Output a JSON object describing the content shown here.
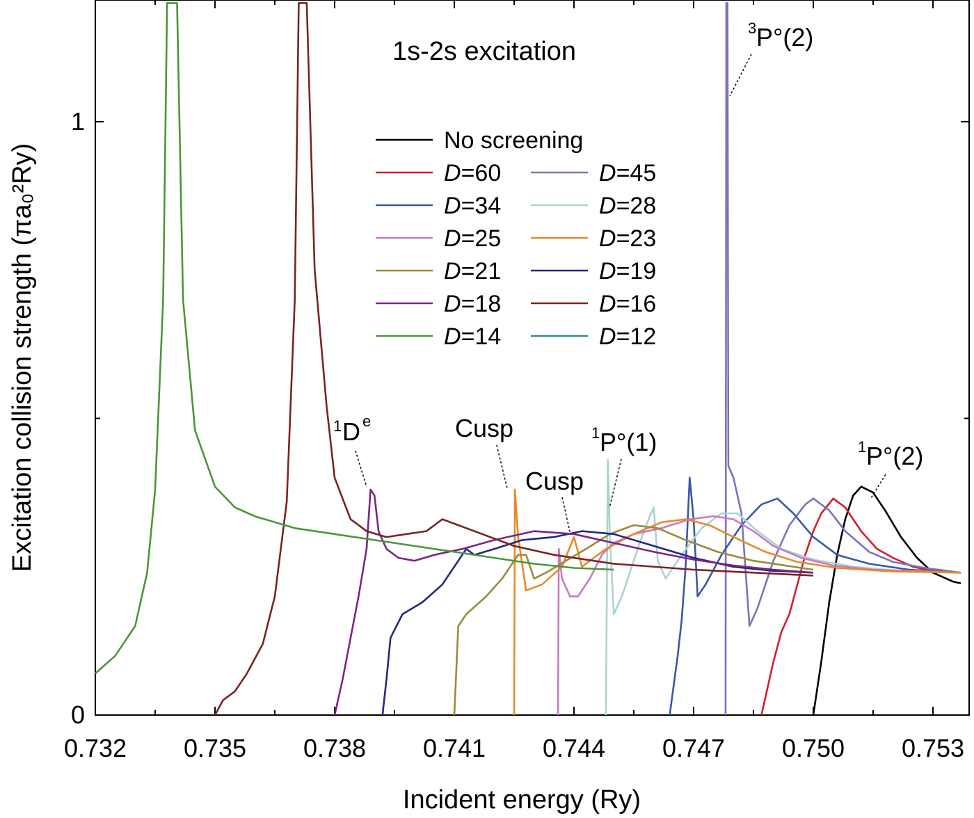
{
  "chart_data": {
    "type": "line",
    "title": "1s-2s excitation",
    "xlabel": "Incident energy (Ry)",
    "ylabel": "Excitation collision strength (πa₀²Ry)",
    "xlim": [
      0.732,
      0.7537
    ],
    "ylim": [
      0,
      1.2
    ],
    "x_ticks": [
      "0.732",
      "0.735",
      "0.738",
      "0.741",
      "0.744",
      "0.747",
      "0.750",
      "0.753"
    ],
    "y_ticks": [
      "0",
      "1"
    ],
    "grid": false,
    "legend_position": "upper-center",
    "series": [
      {
        "name": "No screening",
        "color": "#000000",
        "points": [
          [
            0.75,
            0.0
          ],
          [
            0.7502,
            0.09
          ],
          [
            0.7504,
            0.19
          ],
          [
            0.7506,
            0.27
          ],
          [
            0.7508,
            0.33
          ],
          [
            0.751,
            0.37
          ],
          [
            0.7512,
            0.385
          ],
          [
            0.7515,
            0.375
          ],
          [
            0.7518,
            0.345
          ],
          [
            0.7522,
            0.3
          ],
          [
            0.7526,
            0.265
          ],
          [
            0.753,
            0.24
          ],
          [
            0.7535,
            0.225
          ],
          [
            0.7537,
            0.222
          ]
        ]
      },
      {
        "name": "D=60",
        "color": "#d21f2a",
        "points": [
          [
            0.7487,
            0.0
          ],
          [
            0.749,
            0.09
          ],
          [
            0.7492,
            0.14
          ],
          [
            0.7494,
            0.17
          ],
          [
            0.7496,
            0.22
          ],
          [
            0.7498,
            0.27
          ],
          [
            0.75,
            0.31
          ],
          [
            0.7502,
            0.34
          ],
          [
            0.7505,
            0.365
          ],
          [
            0.7508,
            0.35
          ],
          [
            0.7512,
            0.31
          ],
          [
            0.7516,
            0.28
          ],
          [
            0.752,
            0.265
          ],
          [
            0.7525,
            0.25
          ],
          [
            0.753,
            0.243
          ],
          [
            0.7537,
            0.24
          ]
        ]
      },
      {
        "name": "D=45",
        "color": "#7b73b8",
        "points": [
          [
            0.7478,
            0.0
          ],
          [
            0.74782,
            1.2
          ],
          [
            0.74785,
            1.2
          ],
          [
            0.74787,
            0.42
          ],
          [
            0.748,
            0.4
          ],
          [
            0.7482,
            0.34
          ],
          [
            0.7484,
            0.15
          ],
          [
            0.7486,
            0.18
          ],
          [
            0.749,
            0.26
          ],
          [
            0.7494,
            0.32
          ],
          [
            0.7498,
            0.355
          ],
          [
            0.75,
            0.365
          ],
          [
            0.7504,
            0.345
          ],
          [
            0.7508,
            0.31
          ],
          [
            0.7514,
            0.275
          ],
          [
            0.752,
            0.258
          ],
          [
            0.7528,
            0.248
          ],
          [
            0.7537,
            0.24
          ]
        ]
      },
      {
        "name": "D=34",
        "color": "#3a57a7",
        "points": [
          [
            0.7464,
            0.0
          ],
          [
            0.7466,
            0.1
          ],
          [
            0.7467,
            0.16
          ],
          [
            0.7468,
            0.25
          ],
          [
            0.7469,
            0.4
          ],
          [
            0.747,
            0.33
          ],
          [
            0.7471,
            0.2
          ],
          [
            0.7473,
            0.22
          ],
          [
            0.7477,
            0.27
          ],
          [
            0.7482,
            0.32
          ],
          [
            0.7487,
            0.355
          ],
          [
            0.7491,
            0.365
          ],
          [
            0.7495,
            0.34
          ],
          [
            0.75,
            0.3
          ],
          [
            0.7506,
            0.27
          ],
          [
            0.7514,
            0.255
          ],
          [
            0.7524,
            0.245
          ],
          [
            0.7537,
            0.24
          ]
        ]
      },
      {
        "name": "D=28",
        "color": "#a9d4d3",
        "points": [
          [
            0.7448,
            0.0
          ],
          [
            0.74485,
            0.43
          ],
          [
            0.7449,
            0.3
          ],
          [
            0.745,
            0.17
          ],
          [
            0.7452,
            0.2
          ],
          [
            0.7455,
            0.26
          ],
          [
            0.7457,
            0.3
          ],
          [
            0.7459,
            0.335
          ],
          [
            0.746,
            0.35
          ],
          [
            0.7461,
            0.26
          ],
          [
            0.7463,
            0.23
          ],
          [
            0.7467,
            0.27
          ],
          [
            0.7472,
            0.315
          ],
          [
            0.7477,
            0.34
          ],
          [
            0.7481,
            0.34
          ],
          [
            0.7486,
            0.31
          ],
          [
            0.7492,
            0.28
          ],
          [
            0.75,
            0.262
          ],
          [
            0.751,
            0.25
          ],
          [
            0.752,
            0.244
          ],
          [
            0.7537,
            0.24
          ]
        ]
      },
      {
        "name": "D=25",
        "color": "#c97ac0",
        "points": [
          [
            0.7436,
            0.0
          ],
          [
            0.74362,
            0.28
          ],
          [
            0.7437,
            0.23
          ],
          [
            0.7439,
            0.2
          ],
          [
            0.7441,
            0.2
          ],
          [
            0.7444,
            0.23
          ],
          [
            0.7447,
            0.27
          ],
          [
            0.745,
            0.29
          ],
          [
            0.7455,
            0.305
          ],
          [
            0.7462,
            0.315
          ],
          [
            0.7469,
            0.33
          ],
          [
            0.7475,
            0.335
          ],
          [
            0.748,
            0.33
          ],
          [
            0.7485,
            0.31
          ],
          [
            0.749,
            0.285
          ],
          [
            0.7497,
            0.265
          ],
          [
            0.7505,
            0.252
          ],
          [
            0.7515,
            0.245
          ],
          [
            0.7537,
            0.24
          ]
        ]
      },
      {
        "name": "D=23",
        "color": "#e8892b",
        "points": [
          [
            0.7425,
            0.0
          ],
          [
            0.74252,
            0.38
          ],
          [
            0.7426,
            0.3
          ],
          [
            0.7428,
            0.21
          ],
          [
            0.7432,
            0.22
          ],
          [
            0.7437,
            0.25
          ],
          [
            0.744,
            0.3
          ],
          [
            0.7442,
            0.25
          ],
          [
            0.7444,
            0.26
          ],
          [
            0.7448,
            0.28
          ],
          [
            0.7455,
            0.305
          ],
          [
            0.7462,
            0.325
          ],
          [
            0.7468,
            0.33
          ],
          [
            0.7474,
            0.32
          ],
          [
            0.748,
            0.3
          ],
          [
            0.7488,
            0.275
          ],
          [
            0.7496,
            0.258
          ],
          [
            0.7506,
            0.248
          ],
          [
            0.752,
            0.242
          ],
          [
            0.7537,
            0.24
          ]
        ]
      },
      {
        "name": "D=21",
        "color": "#9c8b36",
        "points": [
          [
            0.741,
            0.0
          ],
          [
            0.7411,
            0.15
          ],
          [
            0.7413,
            0.17
          ],
          [
            0.7418,
            0.2
          ],
          [
            0.7422,
            0.23
          ],
          [
            0.7426,
            0.27
          ],
          [
            0.7428,
            0.27
          ],
          [
            0.743,
            0.23
          ],
          [
            0.7433,
            0.24
          ],
          [
            0.7438,
            0.26
          ],
          [
            0.7443,
            0.28
          ],
          [
            0.7449,
            0.305
          ],
          [
            0.7455,
            0.32
          ],
          [
            0.7461,
            0.315
          ],
          [
            0.7468,
            0.295
          ],
          [
            0.7476,
            0.275
          ],
          [
            0.7485,
            0.26
          ],
          [
            0.75,
            0.245
          ]
        ]
      },
      {
        "name": "D=19",
        "color": "#24287f",
        "points": [
          [
            0.7392,
            0.0
          ],
          [
            0.7393,
            0.06
          ],
          [
            0.7394,
            0.13
          ],
          [
            0.7397,
            0.17
          ],
          [
            0.7402,
            0.19
          ],
          [
            0.7407,
            0.22
          ],
          [
            0.7411,
            0.26
          ],
          [
            0.7413,
            0.28
          ],
          [
            0.7415,
            0.27
          ],
          [
            0.742,
            0.28
          ],
          [
            0.7427,
            0.295
          ],
          [
            0.7435,
            0.3
          ],
          [
            0.7442,
            0.31
          ],
          [
            0.745,
            0.305
          ],
          [
            0.746,
            0.285
          ],
          [
            0.747,
            0.265
          ],
          [
            0.748,
            0.25
          ],
          [
            0.749,
            0.243
          ],
          [
            0.75,
            0.24
          ]
        ]
      },
      {
        "name": "D=18",
        "color": "#7b2585",
        "points": [
          [
            0.738,
            0.0
          ],
          [
            0.7382,
            0.06
          ],
          [
            0.7384,
            0.13
          ],
          [
            0.7386,
            0.2
          ],
          [
            0.7388,
            0.28
          ],
          [
            0.7389,
            0.38
          ],
          [
            0.739,
            0.37
          ],
          [
            0.7391,
            0.31
          ],
          [
            0.7393,
            0.28
          ],
          [
            0.7396,
            0.265
          ],
          [
            0.74,
            0.26
          ],
          [
            0.7405,
            0.27
          ],
          [
            0.7412,
            0.28
          ],
          [
            0.742,
            0.295
          ],
          [
            0.743,
            0.31
          ],
          [
            0.744,
            0.305
          ],
          [
            0.745,
            0.29
          ],
          [
            0.746,
            0.275
          ],
          [
            0.747,
            0.262
          ],
          [
            0.748,
            0.252
          ],
          [
            0.749,
            0.245
          ],
          [
            0.75,
            0.24
          ]
        ]
      },
      {
        "name": "D=16",
        "color": "#7a2323",
        "points": [
          [
            0.735,
            0.0
          ],
          [
            0.7352,
            0.025
          ],
          [
            0.7355,
            0.04
          ],
          [
            0.7358,
            0.07
          ],
          [
            0.7362,
            0.12
          ],
          [
            0.7365,
            0.2
          ],
          [
            0.7368,
            0.36
          ],
          [
            0.737,
            0.7
          ],
          [
            0.7371,
            1.2
          ],
          [
            0.7373,
            1.2
          ],
          [
            0.7375,
            0.75
          ],
          [
            0.7378,
            0.52
          ],
          [
            0.738,
            0.4
          ],
          [
            0.7384,
            0.33
          ],
          [
            0.7388,
            0.31
          ],
          [
            0.7393,
            0.3
          ],
          [
            0.7398,
            0.305
          ],
          [
            0.7403,
            0.31
          ],
          [
            0.7407,
            0.33
          ],
          [
            0.7411,
            0.32
          ],
          [
            0.7417,
            0.305
          ],
          [
            0.7425,
            0.285
          ],
          [
            0.7435,
            0.27
          ],
          [
            0.745,
            0.255
          ],
          [
            0.747,
            0.245
          ],
          [
            0.75,
            0.235
          ]
        ]
      },
      {
        "name": "D=14",
        "color": "#4c953b",
        "points": [
          [
            0.732,
            0.07
          ],
          [
            0.7325,
            0.1
          ],
          [
            0.733,
            0.15
          ],
          [
            0.7333,
            0.24
          ],
          [
            0.7335,
            0.38
          ],
          [
            0.7337,
            0.7
          ],
          [
            0.7338,
            1.2
          ],
          [
            0.73405,
            1.2
          ],
          [
            0.7342,
            0.7
          ],
          [
            0.7345,
            0.48
          ],
          [
            0.735,
            0.385
          ],
          [
            0.7355,
            0.35
          ],
          [
            0.736,
            0.335
          ],
          [
            0.737,
            0.315
          ],
          [
            0.738,
            0.305
          ],
          [
            0.739,
            0.295
          ],
          [
            0.74,
            0.285
          ],
          [
            0.741,
            0.275
          ],
          [
            0.742,
            0.265
          ],
          [
            0.743,
            0.255
          ],
          [
            0.744,
            0.248
          ],
          [
            0.745,
            0.245
          ]
        ]
      },
      {
        "name": "D=12",
        "color": "#2a8c90",
        "points": []
      }
    ],
    "annotations": [
      {
        "label": "1",
        "label_main": "D",
        "label_sup": "e",
        "pre_sup": "1"
      },
      {
        "label": "Cusp"
      },
      {
        "label": "Cusp"
      },
      {
        "pre_sup": "1",
        "label_main": "P°(1)"
      },
      {
        "pre_sup": "3",
        "label_main": "P°(2)"
      },
      {
        "pre_sup": "1",
        "label_main": "P°(2)"
      }
    ]
  }
}
